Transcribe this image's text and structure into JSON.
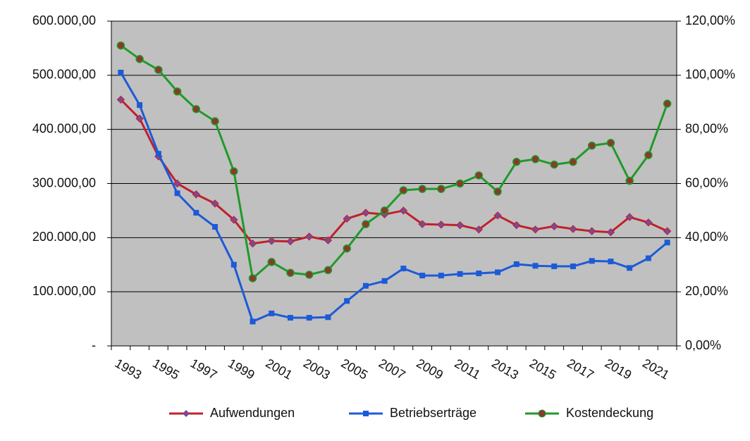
{
  "chart_data": {
    "type": "line",
    "categories": [
      "1993",
      null,
      "1995",
      null,
      "1997",
      null,
      "1999",
      null,
      "2001",
      null,
      "2003",
      null,
      "2005",
      null,
      "2007",
      null,
      "2009",
      null,
      "2011",
      null,
      "2013",
      null,
      "2015",
      null,
      "2017",
      null,
      "2019",
      null,
      "2021",
      null
    ],
    "series": [
      {
        "name": "Aufwendungen",
        "color": "#c0202c",
        "marker_color": "#7a4a9a",
        "values": [
          455000,
          420000,
          350000,
          300000,
          280000,
          263000,
          233000,
          189000,
          194000,
          193000,
          202000,
          195000,
          235000,
          246000,
          243000,
          250000,
          225000,
          224000,
          223000,
          215000,
          241000,
          223000,
          215000,
          221000,
          216000,
          212000,
          210000,
          238000,
          228000,
          212000
        ]
      },
      {
        "name": "Betriebserträge",
        "color": "#1c5ad8",
        "marker_color": "#1c5ad8",
        "values": [
          505000,
          445000,
          355000,
          282000,
          246000,
          220000,
          150000,
          45000,
          60000,
          52000,
          52000,
          53000,
          83000,
          111000,
          120000,
          143000,
          130000,
          130000,
          133000,
          134000,
          136000,
          151000,
          148000,
          147000,
          147000,
          157000,
          156000,
          144000,
          162000,
          191000
        ]
      },
      {
        "name": "Kostendeckung",
        "color": "#1f9a2a",
        "marker_color": "#8a3a2a",
        "axis": "y2",
        "values": [
          111,
          106,
          102,
          94,
          87.5,
          83,
          64.5,
          25,
          31,
          27,
          26.3,
          28,
          36,
          45,
          50,
          57.5,
          58,
          58,
          60,
          63,
          57,
          68,
          69,
          67,
          68,
          74,
          75,
          61,
          70.5,
          89.5
        ]
      }
    ],
    "ylim": [
      0,
      600000
    ],
    "yticks": [
      {
        "value": 0,
        "label": "-"
      },
      {
        "value": 100000,
        "label": "100.000,00"
      },
      {
        "value": 200000,
        "label": "200.000,00"
      },
      {
        "value": 300000,
        "label": "300.000,00"
      },
      {
        "value": 400000,
        "label": "400.000,00"
      },
      {
        "value": 500000,
        "label": "500.000,00"
      },
      {
        "value": 600000,
        "label": "600.000,00"
      }
    ],
    "y2lim": [
      0,
      120
    ],
    "y2ticks": [
      {
        "value": 0,
        "label": "0,00%"
      },
      {
        "value": 20,
        "label": "20,00%"
      },
      {
        "value": 40,
        "label": "40,00%"
      },
      {
        "value": 60,
        "label": "60,00%"
      },
      {
        "value": 80,
        "label": "80,00%"
      },
      {
        "value": 100,
        "label": "100,00%"
      },
      {
        "value": 120,
        "label": "120,00%"
      }
    ],
    "grid": true,
    "plot_background": "#c0c0c0",
    "legend": "bottom"
  }
}
